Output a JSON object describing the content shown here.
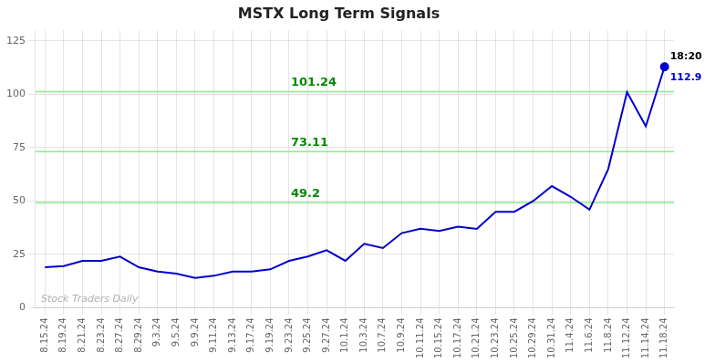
{
  "chart_data": {
    "type": "line",
    "title": "MSTX Long Term Signals",
    "categories": [
      "8.15.24",
      "8.19.24",
      "8.21.24",
      "8.23.24",
      "8.27.24",
      "8.29.24",
      "9.3.24",
      "9.5.24",
      "9.9.24",
      "9.11.24",
      "9.13.24",
      "9.17.24",
      "9.19.24",
      "9.23.24",
      "9.25.24",
      "9.27.24",
      "10.1.24",
      "10.3.24",
      "10.7.24",
      "10.9.24",
      "10.11.24",
      "10.15.24",
      "10.17.24",
      "10.21.24",
      "10.23.24",
      "10.25.24",
      "10.29.24",
      "10.31.24",
      "11.4.24",
      "11.6.24",
      "11.8.24",
      "11.12.24",
      "11.14.24",
      "11.18.24"
    ],
    "values": [
      19,
      19.5,
      22,
      22,
      24,
      19,
      17,
      16,
      14,
      15,
      17,
      17,
      18,
      22,
      24,
      27,
      22,
      30,
      28,
      35,
      37,
      36,
      38,
      37,
      45,
      45,
      50,
      57,
      52,
      46,
      65,
      101,
      85,
      112.9
    ],
    "color": "#0000cc",
    "hlines": [
      {
        "value": 101.24,
        "label": "101.24",
        "color": "#88ee88",
        "label_color": "#008800"
      },
      {
        "value": 73.11,
        "label": "73.11",
        "color": "#88ee88",
        "label_color": "#008800"
      },
      {
        "value": 49.2,
        "label": "49.2",
        "color": "#88ee88",
        "label_color": "#008800"
      }
    ],
    "annotations": [
      {
        "text": "18:20",
        "color": "#000000",
        "x": "11.18.24",
        "y": 112.9
      },
      {
        "text": "112.9",
        "color": "#0000cc",
        "x": "11.18.24",
        "y": 112.9
      },
      {
        "text": "Stock Traders Daily",
        "color": "#b0b0b0"
      }
    ],
    "ylim": [
      0,
      130
    ],
    "yticks": [
      0,
      25,
      50,
      75,
      100,
      125
    ],
    "grid": true
  }
}
